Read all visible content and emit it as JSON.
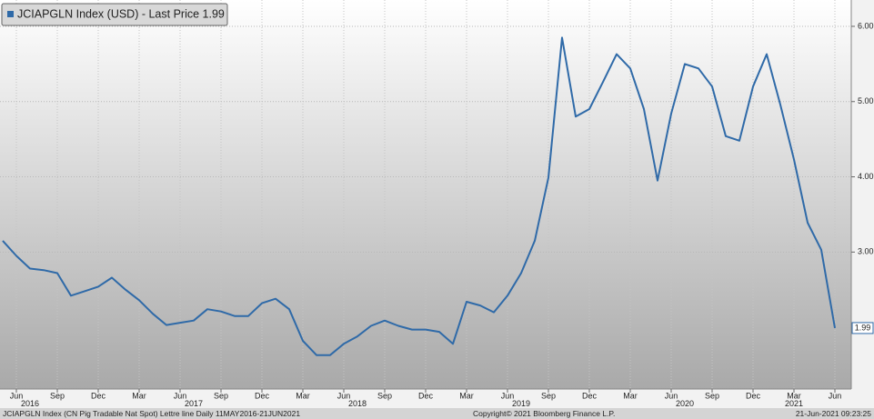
{
  "chart_data": {
    "type": "line",
    "x": [
      "2016-05",
      "2016-06",
      "2016-07",
      "2016-08",
      "2016-09",
      "2016-10",
      "2016-11",
      "2016-12",
      "2017-01",
      "2017-02",
      "2017-03",
      "2017-04",
      "2017-05",
      "2017-06",
      "2017-07",
      "2017-08",
      "2017-09",
      "2017-10",
      "2017-11",
      "2017-12",
      "2018-01",
      "2018-02",
      "2018-03",
      "2018-04",
      "2018-05",
      "2018-06",
      "2018-07",
      "2018-08",
      "2018-09",
      "2018-10",
      "2018-11",
      "2018-12",
      "2019-01",
      "2019-02",
      "2019-03",
      "2019-04",
      "2019-05",
      "2019-06",
      "2019-07",
      "2019-08",
      "2019-09",
      "2019-10",
      "2019-11",
      "2019-12",
      "2020-01",
      "2020-02",
      "2020-03",
      "2020-04",
      "2020-05",
      "2020-06",
      "2020-07",
      "2020-08",
      "2020-09",
      "2020-10",
      "2020-11",
      "2020-12",
      "2021-01",
      "2021-02",
      "2021-03",
      "2021-04",
      "2021-05",
      "2021-06"
    ],
    "series": [
      {
        "name": "JCIAPGLN Index (USD) - Last Price 1.99",
        "color": "#2f6aa8",
        "values": [
          3.15,
          2.95,
          2.78,
          2.76,
          2.72,
          2.42,
          2.48,
          2.54,
          2.66,
          2.5,
          2.36,
          2.18,
          2.03,
          2.06,
          2.09,
          2.24,
          2.21,
          2.15,
          2.15,
          2.32,
          2.38,
          2.24,
          1.82,
          1.63,
          1.63,
          1.78,
          1.88,
          2.02,
          2.09,
          2.02,
          1.97,
          1.97,
          1.94,
          1.78,
          2.34,
          2.29,
          2.2,
          2.42,
          2.72,
          3.15,
          3.99,
          5.85,
          4.8,
          4.9,
          5.26,
          5.63,
          5.44,
          4.9,
          3.95,
          4.84,
          5.5,
          5.44,
          5.2,
          4.54,
          4.48,
          5.2,
          5.63,
          4.96,
          4.23,
          3.39,
          3.03,
          1.99
        ]
      }
    ],
    "ylim": [
      1.18,
      6.35
    ],
    "yticks": [
      {
        "value": 3,
        "label": "3.00"
      },
      {
        "value": 4,
        "label": "4.00"
      },
      {
        "value": 5,
        "label": "5.00"
      },
      {
        "value": 6,
        "label": "6.00"
      }
    ],
    "xticks": [
      {
        "value": "2016-06",
        "label": "Jun"
      },
      {
        "value": "2016-09",
        "label": "Sep"
      },
      {
        "value": "2016-12",
        "label": "Dec"
      },
      {
        "value": "2017-03",
        "label": "Mar"
      },
      {
        "value": "2017-06",
        "label": "Jun"
      },
      {
        "value": "2017-09",
        "label": "Sep"
      },
      {
        "value": "2017-12",
        "label": "Dec"
      },
      {
        "value": "2018-03",
        "label": "Mar"
      },
      {
        "value": "2018-06",
        "label": "Jun"
      },
      {
        "value": "2018-09",
        "label": "Sep"
      },
      {
        "value": "2018-12",
        "label": "Dec"
      },
      {
        "value": "2019-03",
        "label": "Mar"
      },
      {
        "value": "2019-06",
        "label": "Jun"
      },
      {
        "value": "2019-09",
        "label": "Sep"
      },
      {
        "value": "2019-12",
        "label": "Dec"
      },
      {
        "value": "2020-03",
        "label": "Mar"
      },
      {
        "value": "2020-06",
        "label": "Jun"
      },
      {
        "value": "2020-09",
        "label": "Sep"
      },
      {
        "value": "2020-12",
        "label": "Dec"
      },
      {
        "value": "2021-03",
        "label": "Mar"
      },
      {
        "value": "2021-06",
        "label": "Jun"
      }
    ],
    "year_labels": [
      {
        "value": "2016-07",
        "label": "2016"
      },
      {
        "value": "2017-07",
        "label": "2017"
      },
      {
        "value": "2018-07",
        "label": "2018"
      },
      {
        "value": "2019-07",
        "label": "2019"
      },
      {
        "value": "2020-07",
        "label": "2020"
      },
      {
        "value": "2021-03",
        "label": "2021"
      }
    ],
    "grid": true,
    "footer_left": "JCIAPGLN Index (CN Pig Tradable Nat Spot) Lettre line  Daily 11MAY2016-21JUN2021",
    "footer_center": "Copyright© 2021 Bloomberg Finance L.P.",
    "footer_right": "21-Jun-2021 09:23:25"
  }
}
